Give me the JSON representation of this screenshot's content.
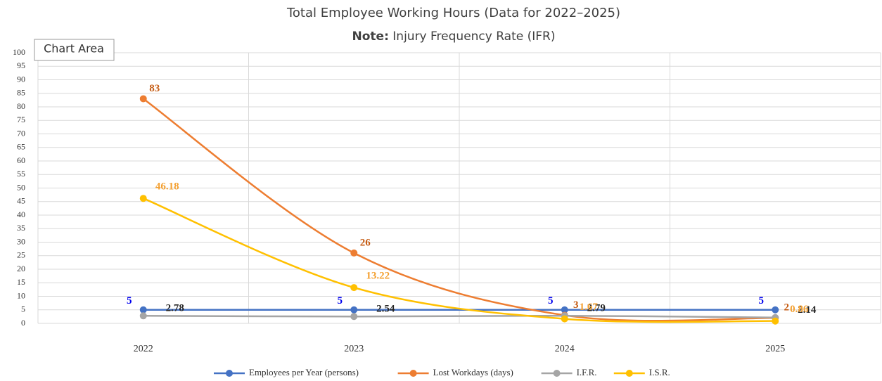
{
  "chart_data": {
    "type": "line",
    "title": "Total Employee Working Hours (Data for 2022–2025)",
    "note_label": "Note:",
    "subtitle": "Injury Frequency Rate (IFR)",
    "tooltip": "Chart Area",
    "categories": [
      "2022",
      "2023",
      "2024",
      "2025"
    ],
    "series": [
      {
        "name": "Employees per Year (persons)",
        "color": "#4472c4",
        "label_color": "#0000ee",
        "values": [
          5,
          5,
          5,
          5
        ]
      },
      {
        "name": "Lost Workdays (days)",
        "color": "#ed7d31",
        "label_color": "#c55a11",
        "values": [
          83,
          26,
          3,
          2
        ]
      },
      {
        "name": "I.F.R.",
        "color": "#a5a5a5",
        "label_color": "#262626",
        "values": [
          2.78,
          2.54,
          2.79,
          2.14
        ]
      },
      {
        "name": "I.S.R.",
        "color": "#ffc000",
        "label_color": "#f4a030",
        "values": [
          46.18,
          13.22,
          1.67,
          0.86
        ]
      }
    ],
    "ylim": [
      0,
      100
    ],
    "yticks": [
      0,
      5,
      10,
      15,
      20,
      25,
      30,
      35,
      40,
      45,
      50,
      55,
      60,
      65,
      70,
      75,
      80,
      85,
      90,
      95,
      100
    ],
    "grid": true,
    "smooth": true,
    "legend": "bottom"
  }
}
